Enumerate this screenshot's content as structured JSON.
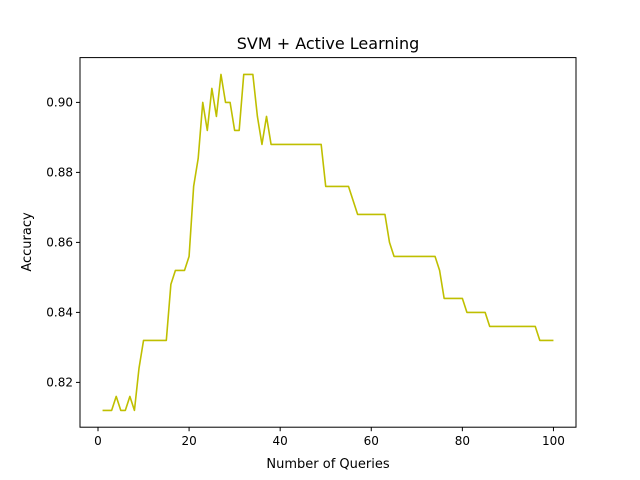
{
  "chart_data": {
    "type": "line",
    "title": "SVM + Active Learning",
    "xlabel": "Number of Queries",
    "ylabel": "Accuracy",
    "xlim": [
      -3.95,
      104.95
    ],
    "ylim": [
      0.8072,
      0.9128
    ],
    "xticks": [
      0,
      20,
      40,
      60,
      80,
      100
    ],
    "xtick_labels": [
      "0",
      "20",
      "40",
      "60",
      "80",
      "100"
    ],
    "yticks": [
      0.82,
      0.84,
      0.86,
      0.88,
      0.9
    ],
    "ytick_labels": [
      "0.82",
      "0.84",
      "0.86",
      "0.88",
      "0.90"
    ],
    "grid": false,
    "series": [
      {
        "color": "#bfbf00",
        "x": [
          1,
          2,
          3,
          4,
          5,
          6,
          7,
          8,
          9,
          10,
          11,
          12,
          13,
          14,
          15,
          16,
          17,
          18,
          19,
          20,
          21,
          22,
          23,
          24,
          25,
          26,
          27,
          28,
          29,
          30,
          31,
          32,
          33,
          34,
          35,
          36,
          37,
          38,
          39,
          40,
          41,
          42,
          43,
          44,
          45,
          46,
          47,
          48,
          49,
          50,
          51,
          52,
          53,
          54,
          55,
          56,
          57,
          58,
          59,
          60,
          61,
          62,
          63,
          64,
          65,
          66,
          67,
          68,
          69,
          70,
          71,
          72,
          73,
          74,
          75,
          76,
          77,
          78,
          79,
          80,
          81,
          82,
          83,
          84,
          85,
          86,
          87,
          88,
          89,
          90,
          91,
          92,
          93,
          94,
          95,
          96,
          97,
          98,
          99,
          100
        ],
        "y": [
          0.812,
          0.812,
          0.812,
          0.816,
          0.812,
          0.812,
          0.816,
          0.812,
          0.824,
          0.832,
          0.832,
          0.832,
          0.832,
          0.832,
          0.832,
          0.848,
          0.852,
          0.852,
          0.852,
          0.856,
          0.876,
          0.884,
          0.9,
          0.892,
          0.904,
          0.896,
          0.908,
          0.9,
          0.9,
          0.892,
          0.892,
          0.908,
          0.908,
          0.908,
          0.896,
          0.888,
          0.896,
          0.888,
          0.888,
          0.888,
          0.888,
          0.888,
          0.888,
          0.888,
          0.888,
          0.888,
          0.888,
          0.888,
          0.888,
          0.876,
          0.876,
          0.876,
          0.876,
          0.876,
          0.876,
          0.872,
          0.868,
          0.868,
          0.868,
          0.868,
          0.868,
          0.868,
          0.868,
          0.86,
          0.856,
          0.856,
          0.856,
          0.856,
          0.856,
          0.856,
          0.856,
          0.856,
          0.856,
          0.856,
          0.852,
          0.844,
          0.844,
          0.844,
          0.844,
          0.844,
          0.84,
          0.84,
          0.84,
          0.84,
          0.84,
          0.836,
          0.836,
          0.836,
          0.836,
          0.836,
          0.836,
          0.836,
          0.836,
          0.836,
          0.836,
          0.836,
          0.832,
          0.832,
          0.832,
          0.832
        ]
      }
    ]
  }
}
